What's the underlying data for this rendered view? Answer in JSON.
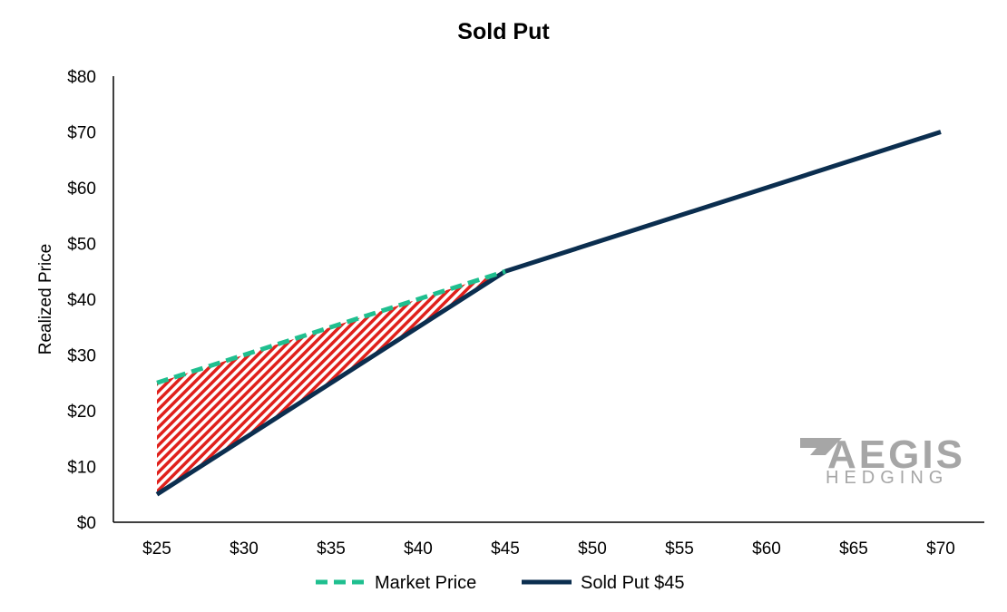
{
  "chart_data": {
    "type": "line",
    "title": "Sold Put",
    "xlabel": "",
    "ylabel": "Realized Price",
    "x": [
      25,
      30,
      35,
      40,
      45,
      50,
      55,
      60,
      65,
      70
    ],
    "x_tick_labels": [
      "$25",
      "$30",
      "$35",
      "$40",
      "$45",
      "$50",
      "$55",
      "$60",
      "$65",
      "$70"
    ],
    "y_tick_labels": [
      "$0",
      "$10",
      "$20",
      "$30",
      "$40",
      "$50",
      "$60",
      "$70",
      "$80"
    ],
    "ylim": [
      0,
      80
    ],
    "xlim": [
      25,
      70
    ],
    "grid": false,
    "legend_position": "bottom",
    "series": [
      {
        "name": "Market Price",
        "x": [
          25,
          45
        ],
        "values": [
          25,
          45
        ],
        "color": "#1fbf8f",
        "style": "dashed"
      },
      {
        "name": "Sold Put $45",
        "x": [
          25,
          45,
          70
        ],
        "values": [
          5,
          45,
          70
        ],
        "color": "#0b2e4f",
        "style": "solid"
      }
    ],
    "shaded_region": {
      "between": [
        "Market Price",
        "Sold Put $45"
      ],
      "x_range": [
        25,
        45
      ],
      "color": "#e0201b",
      "pattern": "diagonal-stripes"
    }
  },
  "logo": {
    "main": "AEGIS",
    "sub": "HEDGING",
    "color": "#a6a6a6"
  }
}
